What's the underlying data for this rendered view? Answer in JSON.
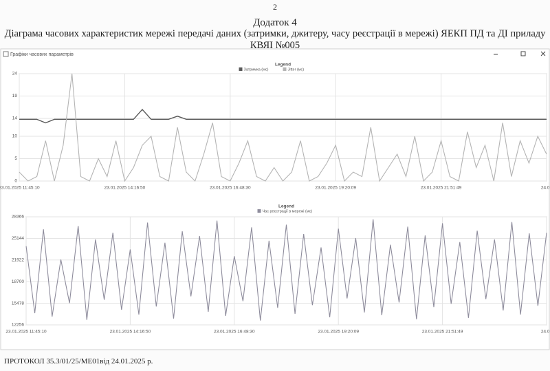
{
  "page_number": "2",
  "appendix": "Додаток 4",
  "title": [
    "Діаграма часових характеристик мережі передачі даних (затримки, джитеру, часу реєстрації в мережі) ЯЕКП ПД та ДІ приладу",
    "КВЯІ №005"
  ],
  "window": {
    "title": "Графіки часових параметрів"
  },
  "chart_data": [
    {
      "type": "line",
      "legend_title": "Legend",
      "grid": true,
      "ylim": [
        0,
        24
      ],
      "yticks": [
        0,
        5,
        10,
        14,
        19,
        24
      ],
      "xlim": [
        0,
        60
      ],
      "xticks": [
        {
          "value": 0,
          "label": "23.01.2025 11:45:10"
        },
        {
          "value": 12,
          "label": "23.01.2025 14:16:50"
        },
        {
          "value": 24,
          "label": "23.01.2025 16:48:30"
        },
        {
          "value": 36,
          "label": "23.01.2025 19:20:09"
        },
        {
          "value": 48,
          "label": "23.01.2025 21:51:49"
        },
        {
          "value": 60,
          "label": "24.01"
        }
      ],
      "series": [
        {
          "name": "Затримка (мс)",
          "color": "#5a5a5a",
          "values": [
            13.8,
            13.8,
            13.8,
            13,
            13.8,
            13.8,
            13.8,
            13.8,
            13.8,
            13.8,
            13.8,
            13.8,
            13.8,
            13.8,
            16,
            13.8,
            13.8,
            13.8,
            14.5,
            13.8,
            13.8,
            13.8,
            13.8,
            13.8,
            13.8,
            13.8,
            13.8,
            13.8,
            13.8,
            13.8,
            13.8,
            13.8,
            13.8,
            13.8,
            13.8,
            13.8,
            13.8,
            13.8,
            13.8,
            13.8,
            13.8,
            13.8,
            13.8,
            13.8,
            13.8,
            13.8,
            13.8,
            13.8,
            13.8,
            13.8,
            13.8,
            13.8,
            13.8,
            13.8,
            13.8,
            13.8,
            13.8,
            13.8,
            13.8,
            13.8,
            13.8
          ]
        },
        {
          "name": "Jitter (мс)",
          "color": "#b4b4b4",
          "values": [
            2,
            0,
            1,
            9,
            0,
            8,
            24,
            1,
            0,
            5,
            1,
            9,
            0,
            3,
            8,
            10,
            1,
            0,
            12,
            2,
            0,
            6,
            13,
            1,
            0,
            4,
            9,
            1,
            0,
            3,
            0,
            2,
            9,
            0,
            1,
            4,
            8,
            0,
            2,
            1,
            12,
            0,
            3,
            6,
            1,
            10,
            0,
            2,
            9,
            1,
            0,
            11,
            3,
            8,
            0,
            13,
            1,
            9,
            4,
            10,
            6
          ]
        }
      ]
    },
    {
      "type": "line",
      "legend_title": "Legend",
      "grid": true,
      "ylim": [
        12256,
        28366
      ],
      "yticks": [
        12256,
        15478,
        18700,
        21922,
        25144,
        28366
      ],
      "xlim": [
        0,
        60
      ],
      "xticks": [
        {
          "value": 0,
          "label": "23.01.2025 11:45:10"
        },
        {
          "value": 12,
          "label": "23.01.2025 14:16:50"
        },
        {
          "value": 24,
          "label": "23.01.2025 16:48:30"
        },
        {
          "value": 36,
          "label": "23.01.2025 19:20:09"
        },
        {
          "value": 48,
          "label": "23.01.2025 21:51:49"
        },
        {
          "value": 60,
          "label": "24.01"
        }
      ],
      "series": [
        {
          "name": "Час реєстрації в мережі (мс)",
          "color": "#8e8c9c",
          "values": [
            24000,
            14000,
            26500,
            13500,
            22000,
            15500,
            27000,
            13000,
            25000,
            16000,
            26000,
            14500,
            23500,
            13800,
            27500,
            15000,
            24500,
            13200,
            26200,
            16500,
            25500,
            14200,
            27800,
            13600,
            22500,
            15800,
            26800,
            12900,
            24800,
            14800,
            27200,
            13900,
            25800,
            15200,
            23800,
            13400,
            26600,
            16200,
            25200,
            14100,
            28000,
            13700,
            24200,
            15600,
            26900,
            13100,
            25600,
            14900,
            27400,
            15400,
            24600,
            13300,
            26300,
            16100,
            25000,
            14400,
            27600,
            13800,
            25900,
            15100,
            26000
          ]
        }
      ]
    }
  ],
  "footer": "ПРОТОКОЛ 35.3/01/25/МЕ01від 24.01.2025 р."
}
